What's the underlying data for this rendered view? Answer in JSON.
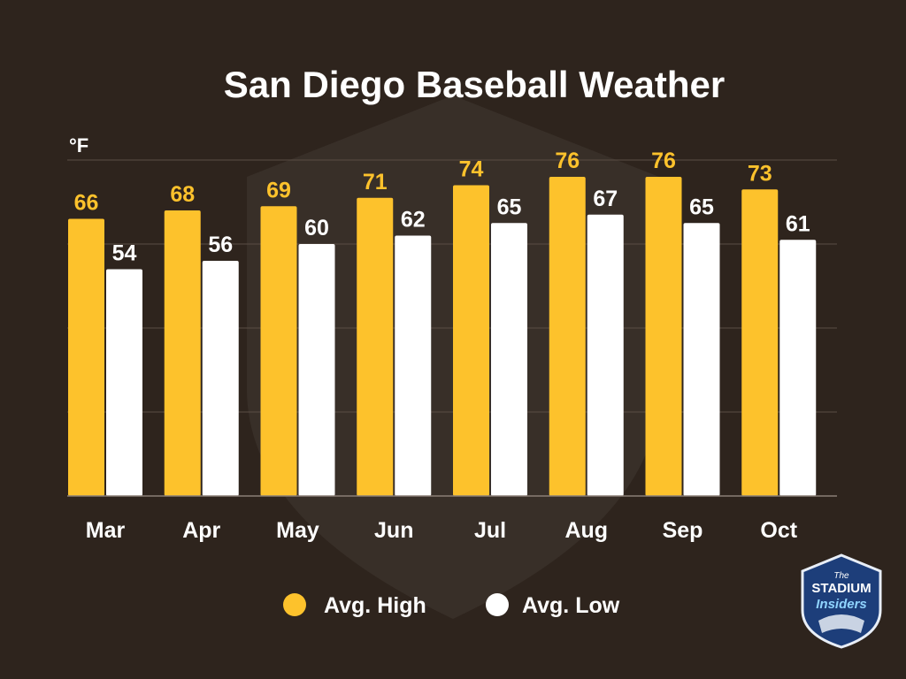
{
  "chart_data": {
    "type": "bar",
    "title": "San Diego Baseball Weather",
    "ylabel": "°F",
    "xlabel": "",
    "ylim": [
      0,
      80
    ],
    "grid": true,
    "categories": [
      "Mar",
      "Apr",
      "May",
      "Jun",
      "Jul",
      "Aug",
      "Sep",
      "Oct"
    ],
    "series": [
      {
        "name": "Avg. High",
        "color": "#fdc22c",
        "label_color": "#fdc22c",
        "values": [
          66,
          68,
          69,
          71,
          74,
          76,
          76,
          73
        ]
      },
      {
        "name": "Avg. Low",
        "color": "#ffffff",
        "label_color": "#ffffff",
        "values": [
          54,
          56,
          60,
          62,
          65,
          67,
          65,
          61
        ]
      }
    ],
    "legend_position": "bottom-center"
  },
  "logo": {
    "line1": "The",
    "line2": "STADIUM",
    "line3": "Insiders"
  },
  "colors": {
    "background": "#2e241d",
    "grid": "#5a4e45",
    "text": "#ffffff"
  }
}
